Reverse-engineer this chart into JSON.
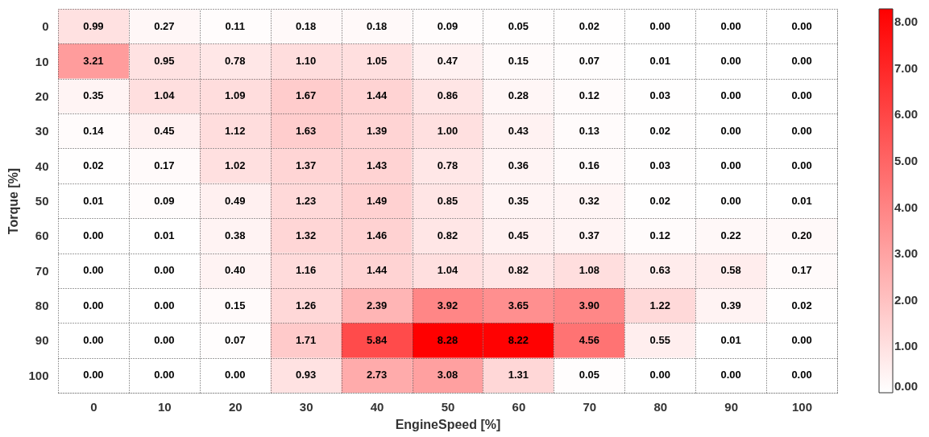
{
  "chart_data": {
    "type": "heatmap",
    "xlabel": "EngineSpeed [%]",
    "ylabel": "Torque [%]",
    "categories": [
      "0",
      "10",
      "20",
      "30",
      "40",
      "50",
      "60",
      "70",
      "80",
      "90",
      "100"
    ],
    "y_categories": [
      "0",
      "10",
      "20",
      "30",
      "40",
      "50",
      "60",
      "70",
      "80",
      "90",
      "100"
    ],
    "cells": [
      [
        0.99,
        0.27,
        0.11,
        0.18,
        0.18,
        0.09,
        0.05,
        0.02,
        0.0,
        0.0,
        0.0
      ],
      [
        3.21,
        0.95,
        0.78,
        1.1,
        1.05,
        0.47,
        0.15,
        0.07,
        0.01,
        0.0,
        0.0
      ],
      [
        0.35,
        1.04,
        1.09,
        1.67,
        1.44,
        0.86,
        0.28,
        0.12,
        0.03,
        0.0,
        0.0
      ],
      [
        0.14,
        0.45,
        1.12,
        1.63,
        1.39,
        1.0,
        0.43,
        0.13,
        0.02,
        0.0,
        0.0
      ],
      [
        0.02,
        0.17,
        1.02,
        1.37,
        1.43,
        0.78,
        0.36,
        0.16,
        0.03,
        0.0,
        0.0
      ],
      [
        0.01,
        0.09,
        0.49,
        1.23,
        1.49,
        0.85,
        0.35,
        0.32,
        0.02,
        0.0,
        0.01
      ],
      [
        0.0,
        0.01,
        0.38,
        1.32,
        1.46,
        0.82,
        0.45,
        0.37,
        0.12,
        0.22,
        0.2
      ],
      [
        0.0,
        0.0,
        0.4,
        1.16,
        1.44,
        1.04,
        0.82,
        1.08,
        0.63,
        0.58,
        0.17
      ],
      [
        0.0,
        0.0,
        0.15,
        1.26,
        2.39,
        3.92,
        3.65,
        3.9,
        1.22,
        0.39,
        0.02
      ],
      [
        0.0,
        0.0,
        0.07,
        1.71,
        5.84,
        8.28,
        8.22,
        4.56,
        0.55,
        0.01,
        0.0
      ],
      [
        0.0,
        0.0,
        0.0,
        0.93,
        2.73,
        3.08,
        1.31,
        0.05,
        0.0,
        0.0,
        0.0
      ]
    ],
    "cell_labels": [
      [
        "0.99",
        "0.27",
        "0.11",
        "0.18",
        "0.18",
        "0.09",
        "0.05",
        "0.02",
        "0.00",
        "0.00",
        "0.00"
      ],
      [
        "3.21",
        "0.95",
        "0.78",
        "1.10",
        "1.05",
        "0.47",
        "0.15",
        "0.07",
        "0.01",
        "0.00",
        "0.00"
      ],
      [
        "0.35",
        "1.04",
        "1.09",
        "1.67",
        "1.44",
        "0.86",
        "0.28",
        "0.12",
        "0.03",
        "0.00",
        "0.00"
      ],
      [
        "0.14",
        "0.45",
        "1.12",
        "1.63",
        "1.39",
        "1.00",
        "0.43",
        "0.13",
        "0.02",
        "0.00",
        "0.00"
      ],
      [
        "0.02",
        "0.17",
        "1.02",
        "1.37",
        "1.43",
        "0.78",
        "0.36",
        "0.16",
        "0.03",
        "0.00",
        "0.00"
      ],
      [
        "0.01",
        "0.09",
        "0.49",
        "1.23",
        "1.49",
        "0.85",
        "0.35",
        "0.32",
        "0.02",
        "0.00",
        "0.01"
      ],
      [
        "0.00",
        "0.01",
        "0.38",
        "1.32",
        "1.46",
        "0.82",
        "0.45",
        "0.37",
        "0.12",
        "0.22",
        "0.20"
      ],
      [
        "0.00",
        "0.00",
        "0.40",
        "1.16",
        "1.44",
        "1.04",
        "0.82",
        "1.08",
        "0.63",
        "0.58",
        "0.17"
      ],
      [
        "0.00",
        "0.00",
        "0.15",
        "1.26",
        "2.39",
        "3.92",
        "3.65",
        "3.90",
        "1.22",
        "0.39",
        "0.02"
      ],
      [
        "0.00",
        "0.00",
        "0.07",
        "1.71",
        "5.84",
        "8.28",
        "8.22",
        "4.56",
        "0.55",
        "0.01",
        "0.00"
      ],
      [
        "0.00",
        "0.00",
        "0.00",
        "0.93",
        "2.73",
        "3.08",
        "1.31",
        "0.05",
        "0.00",
        "0.00",
        "0.00"
      ]
    ],
    "clim": [
      0,
      8.28
    ],
    "cticks": [
      {
        "value": 0,
        "label": "0.00"
      },
      {
        "value": 1,
        "label": "1.00"
      },
      {
        "value": 2,
        "label": "2.00"
      },
      {
        "value": 3,
        "label": "3.00"
      },
      {
        "value": 4,
        "label": "4.00"
      },
      {
        "value": 5,
        "label": "5.00"
      },
      {
        "value": 6,
        "label": "6.00"
      },
      {
        "value": 7,
        "label": "7.00"
      },
      {
        "value": 8,
        "label": "8.00"
      }
    ],
    "grid": true
  }
}
